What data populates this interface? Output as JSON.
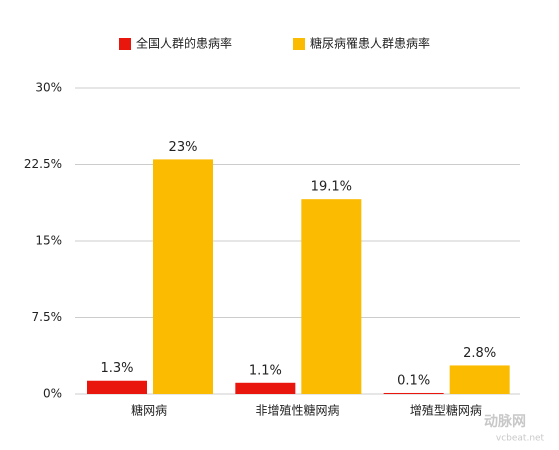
{
  "chart_data": {
    "type": "bar",
    "categories": [
      "糖网病",
      "非增殖性糖网病",
      "增殖型糖网病"
    ],
    "series": [
      {
        "name": "全国人群的患病率",
        "color": "#e8160c",
        "values": [
          1.3,
          1.1,
          0.1
        ],
        "value_labels": [
          "1.3%",
          "1.1%",
          "0.1%"
        ]
      },
      {
        "name": "糖尿病罹患人群患病率",
        "color": "#fbbb00",
        "values": [
          23,
          19.1,
          2.8
        ],
        "value_labels": [
          "23%",
          "19.1%",
          "2.8%"
        ]
      }
    ],
    "ylim": [
      0,
      30
    ],
    "yticks": [
      {
        "value": 0,
        "label": "0%"
      },
      {
        "value": 7.5,
        "label": "7.5%"
      },
      {
        "value": 15,
        "label": "15%"
      },
      {
        "value": 22.5,
        "label": "22.5%"
      },
      {
        "value": 30,
        "label": "30%"
      }
    ],
    "grid": true,
    "legend": "top",
    "watermark": [
      "动脉网",
      "vcbeat.net"
    ]
  }
}
